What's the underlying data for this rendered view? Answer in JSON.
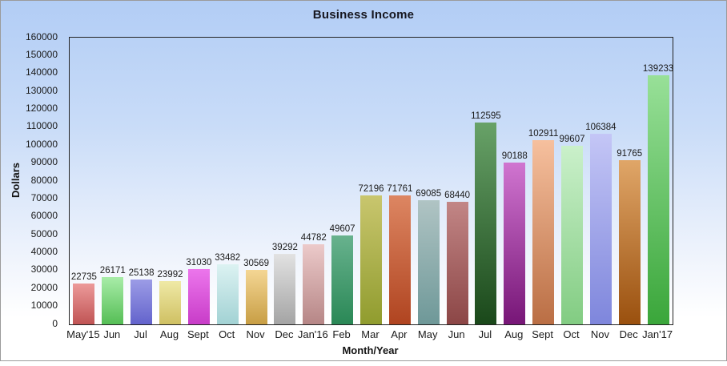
{
  "window": {
    "frame_border_color": "#9b9b9b",
    "background_top_color": "#b2cdf5",
    "background_bottom_color": "#ffffff"
  },
  "chart_data": {
    "type": "bar",
    "title": "Business Income",
    "xlabel": "Month/Year",
    "ylabel": "Dollars",
    "categories": [
      "May'15",
      "Jun",
      "Jul",
      "Aug",
      "Sept",
      "Oct",
      "Nov",
      "Dec",
      "Jan'16",
      "Feb",
      "Mar",
      "Apr",
      "May",
      "Jun",
      "Jul",
      "Aug",
      "Sept",
      "Oct",
      "Nov",
      "Dec",
      "Jan'17"
    ],
    "values": [
      22735,
      26171,
      25138,
      23992,
      31030,
      33482,
      30569,
      39292,
      44782,
      49607,
      72196,
      71761,
      69085,
      68440,
      112595,
      90188,
      102911,
      99607,
      106384,
      91765,
      139233
    ],
    "ylim": [
      0,
      160000
    ],
    "yticks": [
      0,
      10000,
      20000,
      30000,
      40000,
      50000,
      60000,
      70000,
      80000,
      90000,
      100000,
      110000,
      120000,
      130000,
      140000,
      150000,
      160000
    ],
    "grid": false,
    "legend": false,
    "value_labels_shown": true,
    "plot_border_color": "#232323",
    "text_color": "#1a1a1a",
    "bar_colors": [
      [
        "#ec9a9a",
        "#c05454"
      ],
      [
        "#a8eca8",
        "#55be55"
      ],
      [
        "#9c9ce6",
        "#6363cc"
      ],
      [
        "#efe9a6",
        "#cfc062"
      ],
      [
        "#ec76ec",
        "#c83cc8"
      ],
      [
        "#dcf2f2",
        "#a2d2d4"
      ],
      [
        "#f4d694",
        "#c89e44"
      ],
      [
        "#e2e2e2",
        "#a4a4a4"
      ],
      [
        "#eccaca",
        "#b68686"
      ],
      [
        "#68b28e",
        "#2a8856"
      ],
      [
        "#c9c66e",
        "#909c2e"
      ],
      [
        "#dd8662",
        "#b04420"
      ],
      [
        "#b0c4c4",
        "#6e9898"
      ],
      [
        "#c28686",
        "#8c4646"
      ],
      [
        "#68a268",
        "#1a481a"
      ],
      [
        "#d075d0",
        "#771677"
      ],
      [
        "#f6c09e",
        "#ba6e44"
      ],
      [
        "#caf0ca",
        "#82cc82"
      ],
      [
        "#c4c6f6",
        "#7e86dc"
      ],
      [
        "#e0a668",
        "#9a500e"
      ],
      [
        "#98e098",
        "#3aa63a"
      ]
    ]
  }
}
